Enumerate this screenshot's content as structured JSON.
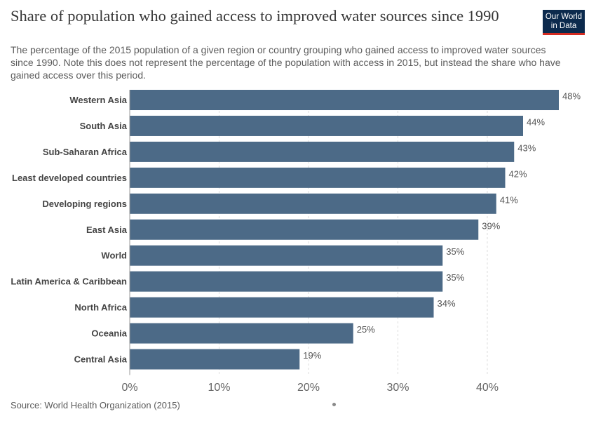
{
  "header": {
    "title": "Share of population who gained access to improved water sources since 1990",
    "subtitle": "The percentage of the 2015 population of a given region or country grouping who gained access to improved water sources since 1990. Note this does not represent the percentage of the population with access in 2015, but instead the share who have gained access over this period."
  },
  "logo": {
    "line1": "Our World",
    "line2": "in Data"
  },
  "footer": {
    "source": "Source: World Health Organization (2015)"
  },
  "colors": {
    "bar": "#4c6a87",
    "grid": "#dddddd",
    "text": "#373737",
    "muted": "#5b5b5b"
  },
  "chart_data": {
    "type": "bar",
    "orientation": "horizontal",
    "categories": [
      "Western Asia",
      "South Asia",
      "Sub-Saharan Africa",
      "Least developed countries",
      "Developing regions",
      "East Asia",
      "World",
      "Latin America & Caribbean",
      "North Africa",
      "Oceania",
      "Central Asia"
    ],
    "values": [
      48,
      44,
      43,
      42,
      41,
      39,
      35,
      35,
      34,
      25,
      19
    ],
    "value_labels": [
      "48%",
      "44%",
      "43%",
      "42%",
      "41%",
      "39%",
      "35%",
      "35%",
      "34%",
      "25%",
      "19%"
    ],
    "xticks": [
      0,
      10,
      20,
      30,
      40
    ],
    "xtick_labels": [
      "0%",
      "10%",
      "20%",
      "30%",
      "40%"
    ],
    "xlim": [
      0,
      48
    ],
    "grid": "vertical-dashed"
  }
}
